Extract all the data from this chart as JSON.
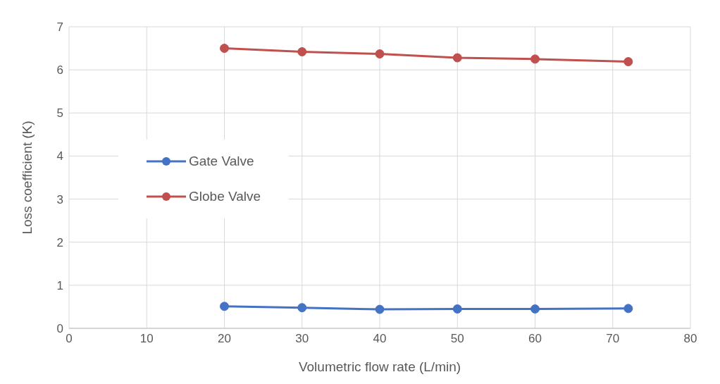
{
  "chart_data": {
    "type": "line",
    "xlabel": "Volumetric flow rate (L/min)",
    "ylabel": "Loss coefficient (K)",
    "x": [
      20,
      30,
      40,
      50,
      60,
      72
    ],
    "series": [
      {
        "name": "Gate Valve",
        "color": "#4472c4",
        "values": [
          0.51,
          0.48,
          0.44,
          0.45,
          0.45,
          0.46
        ]
      },
      {
        "name": "Globe Valve",
        "color": "#c0504d",
        "values": [
          6.5,
          6.42,
          6.37,
          6.28,
          6.25,
          6.19
        ]
      }
    ],
    "xlim": [
      0,
      80
    ],
    "xticks": [
      0,
      10,
      20,
      30,
      40,
      50,
      60,
      70,
      80
    ],
    "ylim": [
      0,
      7
    ],
    "yticks": [
      0,
      1,
      2,
      3,
      4,
      5,
      6,
      7
    ],
    "grid": true,
    "legend": "left",
    "marker": "circle",
    "line_style": "solid"
  }
}
